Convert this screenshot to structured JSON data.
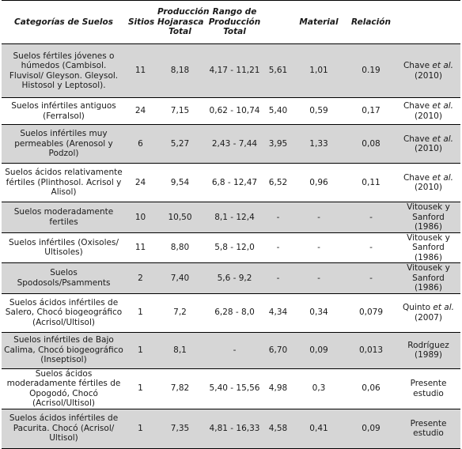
{
  "table": {
    "headers": [
      "Categorías de Suelos",
      "Sitios",
      "Producción Hojarasca Total",
      "Rango de Producción Total",
      "",
      "Material",
      "Relación",
      ""
    ],
    "rows": [
      {
        "cat": "Suelos fértiles jóvenes o húmedos (Cambisol. Fluvisol/ Gleyson. Gleysol. Histosol y Leptosol).",
        "sitios": "11",
        "prod": "8,18",
        "rango": "4,17 - 11,21",
        "c5": "5,61",
        "material": "1,01",
        "relacion": "0.19",
        "ref_pre": "Chave ",
        "ref_em": "et al.",
        "ref_post": " (2010)"
      },
      {
        "cat": "Suelos infértiles antiguos (Ferralsol)",
        "sitios": "24",
        "prod": "7,15",
        "rango": "0,62 - 10,74",
        "c5": "5,40",
        "material": "0,59",
        "relacion": "0,17",
        "ref_pre": "Chave ",
        "ref_em": "et al.",
        "ref_post": " (2010)"
      },
      {
        "cat": "Suelos infértiles muy permeables (Arenosol y Podzol)",
        "sitios": "6",
        "prod": "5,27",
        "rango": "2,43 - 7,44",
        "c5": "3,95",
        "material": "1,33",
        "relacion": "0,08",
        "ref_pre": "Chave ",
        "ref_em": "et al.",
        "ref_post": " (2010)"
      },
      {
        "cat": "Suelos ácidos relativamente fértiles (Plinthosol. Acrisol y Alisol)",
        "sitios": "24",
        "prod": "9,54",
        "rango": "6,8 - 12,47",
        "c5": "6,52",
        "material": "0,96",
        "relacion": "0,11",
        "ref_pre": "Chave ",
        "ref_em": "et al.",
        "ref_post": " (2010)"
      },
      {
        "cat": "Suelos moderadamente fertiles",
        "sitios": "10",
        "prod": "10,50",
        "rango": "8,1 - 12,4",
        "c5": "-",
        "material": "-",
        "relacion": "-",
        "ref_pre": "Vitousek y Sanford (1986)",
        "ref_em": "",
        "ref_post": ""
      },
      {
        "cat": "Suelos infértiles (Oxisoles/ Ultisoles)",
        "sitios": "11",
        "prod": "8,80",
        "rango": "5,8 - 12,0",
        "c5": "-",
        "material": "-",
        "relacion": "-",
        "ref_pre": "Vitousek y Sanford (1986)",
        "ref_em": "",
        "ref_post": ""
      },
      {
        "cat": "Suelos Spodosols/Psamments",
        "sitios": "2",
        "prod": "7,40",
        "rango": "5,6 - 9,2",
        "c5": "-",
        "material": "-",
        "relacion": "-",
        "ref_pre": "Vitousek y Sanford (1986)",
        "ref_em": "",
        "ref_post": ""
      },
      {
        "cat": "Suelos ácidos infértiles de Salero, Chocó biogeográfico (Acrisol/Ultisol)",
        "sitios": "1",
        "prod": "7,2",
        "rango": "6,28 - 8,0",
        "c5": "4,34",
        "material": "0,34",
        "relacion": "0,079",
        "ref_pre": "Quinto ",
        "ref_em": "et al.",
        "ref_post": " (2007)"
      },
      {
        "cat": "Suelos infértiles de Bajo Calima, Chocó biogeográfico (Inseptisol)",
        "sitios": "1",
        "prod": "8,1",
        "rango": "-",
        "c5": "6,70",
        "material": "0,09",
        "relacion": "0,013",
        "ref_pre": "Rodríguez (1989)",
        "ref_em": "",
        "ref_post": ""
      },
      {
        "cat": "Suelos ácidos moderadamente fértiles de Opogodó, Chocó (Acrisol/Ultisol)",
        "sitios": "1",
        "prod": "7,82",
        "rango": "5,40 - 15,56",
        "c5": "4,98",
        "material": "0,3",
        "relacion": "0,06",
        "ref_pre": "Presente estudio",
        "ref_em": "",
        "ref_post": ""
      },
      {
        "cat": "Suelos ácidos infértiles de Pacurita. Chocó (Acrisol/ Ultisol)",
        "sitios": "1",
        "prod": "7,35",
        "rango": "4,81 - 16,33",
        "c5": "4,58",
        "material": "0,41",
        "relacion": "0,09",
        "ref_pre": "Presente estudio",
        "ref_em": "",
        "ref_post": ""
      }
    ]
  },
  "colors": {
    "shaded_row": "#d6d6d6",
    "rule": "#000000"
  }
}
